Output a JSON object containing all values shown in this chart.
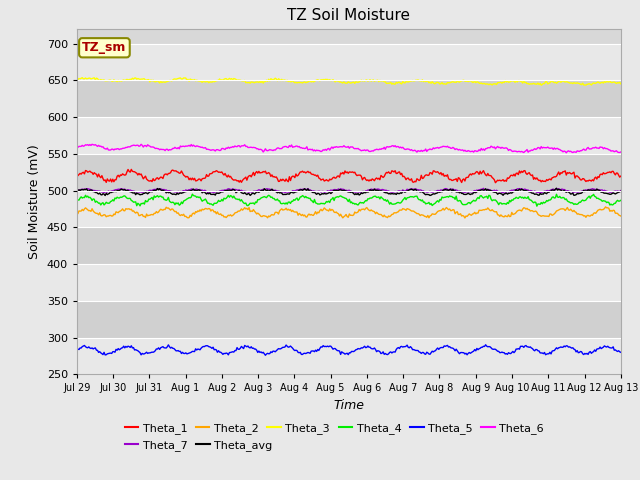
{
  "title": "TZ Soil Moisture",
  "ylabel": "Soil Moisture (mV)",
  "xlabel": "Time",
  "ylim": [
    250,
    720
  ],
  "yticks": [
    250,
    300,
    350,
    400,
    450,
    500,
    550,
    600,
    650,
    700
  ],
  "duration_days": 15,
  "num_points": 500,
  "series": {
    "Theta_1": {
      "base": 520,
      "amplitude": 6,
      "period": 1.2,
      "noise": 1.5,
      "drift": -0.05,
      "color": "#ff0000"
    },
    "Theta_2": {
      "base": 470,
      "amplitude": 5,
      "period": 1.1,
      "noise": 1.2,
      "drift": 0.0,
      "color": "#ffa500"
    },
    "Theta_3": {
      "base": 651,
      "amplitude": 2,
      "period": 1.3,
      "noise": 0.8,
      "drift": -0.35,
      "color": "#ffff00"
    },
    "Theta_4": {
      "base": 487,
      "amplitude": 5,
      "period": 1.0,
      "noise": 1.2,
      "drift": 0.0,
      "color": "#00ee00"
    },
    "Theta_5": {
      "base": 283,
      "amplitude": 5,
      "period": 1.1,
      "noise": 1.0,
      "drift": 0.0,
      "color": "#0000ff"
    },
    "Theta_6": {
      "base": 559,
      "amplitude": 3,
      "period": 1.4,
      "noise": 0.8,
      "drift": -0.25,
      "color": "#ff00ff"
    },
    "Theta_7": {
      "base": 500,
      "amplitude": 2,
      "period": 1.0,
      "noise": 0.5,
      "drift": 0.0,
      "color": "#9900cc"
    },
    "Theta_avg": {
      "base": 498,
      "amplitude": 3,
      "period": 1.0,
      "noise": 0.8,
      "drift": 0.0,
      "color": "#000000"
    }
  },
  "series_order": [
    "Theta_1",
    "Theta_2",
    "Theta_3",
    "Theta_4",
    "Theta_5",
    "Theta_6",
    "Theta_7",
    "Theta_avg"
  ],
  "xtick_labels": [
    "Jul 29",
    "Jul 30",
    "Jul 31",
    "Aug 1",
    "Aug 2",
    "Aug 3",
    "Aug 4",
    "Aug 5",
    "Aug 6",
    "Aug 7",
    "Aug 8",
    "Aug 9",
    "Aug 10",
    "Aug 11",
    "Aug 12",
    "Aug 13"
  ],
  "fig_bg_color": "#e8e8e8",
  "plot_bg_color": "#d8d8d8",
  "band_colors": [
    "#e8e8e8",
    "#d0d0d0"
  ],
  "grid_color": "#ffffff",
  "annotation_text": "TZ_sm",
  "annotation_color": "#aa0000",
  "annotation_bg": "#ffffcc",
  "annotation_border": "#888800",
  "legend_row1": [
    "Theta_1",
    "Theta_2",
    "Theta_3",
    "Theta_4",
    "Theta_5",
    "Theta_6"
  ],
  "legend_row2": [
    "Theta_7",
    "Theta_avg"
  ]
}
